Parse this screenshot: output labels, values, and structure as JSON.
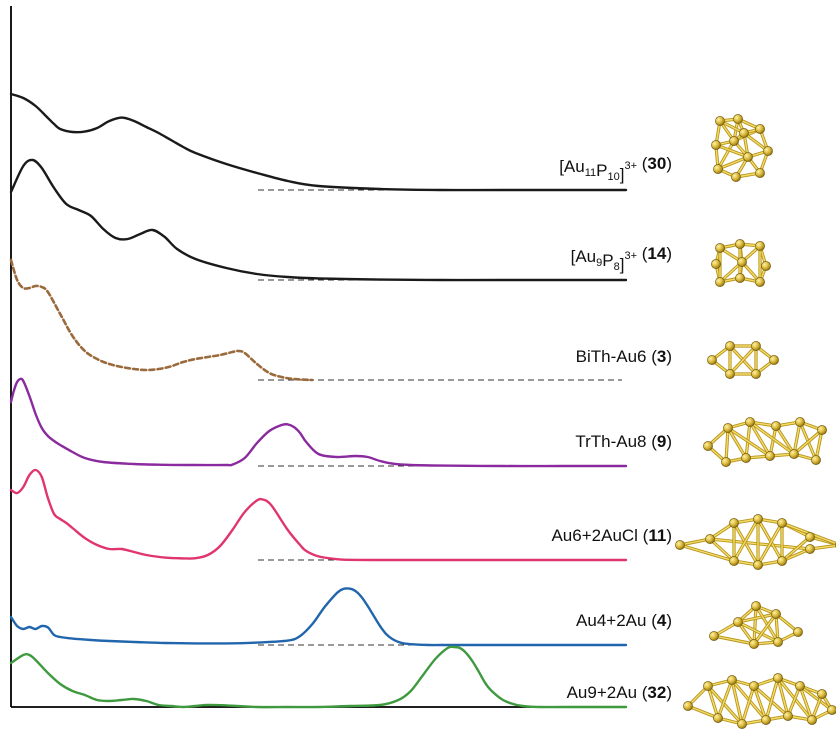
{
  "chart_data": {
    "type": "line",
    "title": "",
    "xlabel": "",
    "ylabel": "",
    "series": [
      {
        "name": "[Au11P10]3+ (30)",
        "label_parts": [
          {
            "t": "[Au",
            "s": "n"
          },
          {
            "t": "11",
            "s": "sub"
          },
          {
            "t": "P",
            "s": "n"
          },
          {
            "t": "10",
            "s": "sub"
          },
          {
            "t": "]",
            "s": "n"
          },
          {
            "t": "3+",
            "s": "sup"
          },
          {
            "t": " (",
            "s": "n"
          },
          {
            "t": "30",
            "s": "b"
          },
          {
            "t": ")",
            "s": "n"
          }
        ],
        "color": "#1a1a1a",
        "dashed": false,
        "x": [
          0,
          2,
          4,
          6,
          7,
          8,
          10,
          12,
          14,
          16,
          18,
          20,
          22,
          24,
          26,
          28,
          30,
          35,
          40,
          45,
          50,
          60,
          70,
          80,
          100
        ],
        "y": [
          4.8,
          4.6,
          4.2,
          3.6,
          3.3,
          3.05,
          2.9,
          2.92,
          3.1,
          3.45,
          3.62,
          3.45,
          3.15,
          2.85,
          2.5,
          2.15,
          1.85,
          1.3,
          0.85,
          0.45,
          0.2,
          0.05,
          0.0,
          0.0,
          0.0
        ]
      },
      {
        "name": "[Au9P8]3+ (14)",
        "label_parts": [
          {
            "t": "[Au",
            "s": "n"
          },
          {
            "t": "9",
            "s": "sub"
          },
          {
            "t": "P",
            "s": "n"
          },
          {
            "t": "8",
            "s": "sub"
          },
          {
            "t": "]",
            "s": "n"
          },
          {
            "t": "3+",
            "s": "sup"
          },
          {
            "t": " (",
            "s": "n"
          },
          {
            "t": "14",
            "s": "b"
          },
          {
            "t": ")",
            "s": "n"
          }
        ],
        "color": "#1a1a1a",
        "dashed": false,
        "x": [
          0,
          2,
          3.5,
          5,
          7,
          9,
          11,
          13,
          15,
          17,
          19,
          21,
          23,
          25,
          27,
          30,
          35,
          40,
          45,
          50,
          60,
          70,
          80,
          100
        ],
        "y": [
          4.4,
          5.7,
          6.0,
          5.6,
          4.6,
          3.8,
          3.5,
          3.2,
          2.55,
          2.1,
          2.05,
          2.3,
          2.5,
          2.15,
          1.55,
          1.05,
          0.6,
          0.3,
          0.15,
          0.08,
          0.02,
          0.0,
          0.0,
          0.0
        ]
      },
      {
        "name": "BiTh-Au6 (3)",
        "label_parts": [
          {
            "t": "BiTh-Au6 (",
            "s": "n"
          },
          {
            "t": "3",
            "s": "b"
          },
          {
            "t": ")",
            "s": "n"
          }
        ],
        "color": "#9b6a3c",
        "dashed": true,
        "x": [
          0,
          1,
          2,
          3,
          4,
          5,
          6,
          8,
          10,
          12,
          14,
          16,
          18,
          20,
          22,
          24,
          26,
          28,
          30,
          32,
          34,
          36,
          37,
          38,
          40,
          42,
          44,
          46,
          49
        ],
        "y": [
          6.0,
          5.0,
          4.6,
          4.6,
          4.7,
          4.65,
          4.4,
          3.3,
          2.2,
          1.45,
          1.05,
          0.8,
          0.65,
          0.55,
          0.5,
          0.55,
          0.68,
          0.9,
          1.05,
          1.15,
          1.25,
          1.4,
          1.45,
          1.35,
          0.8,
          0.35,
          0.15,
          0.05,
          0.0
        ]
      },
      {
        "name": "TrTh-Au8 (9)",
        "label_parts": [
          {
            "t": "TrTh-Au8 (",
            "s": "n"
          },
          {
            "t": "9",
            "s": "b"
          },
          {
            "t": ")",
            "s": "n"
          }
        ],
        "color": "#8a2a9e",
        "dashed": false,
        "x": [
          0,
          0.5,
          1,
          1.5,
          2,
          3,
          4,
          5,
          6,
          7,
          8,
          10,
          12,
          15,
          20,
          25,
          30,
          35,
          36,
          38,
          40,
          42,
          44,
          45,
          46,
          47,
          48,
          50,
          53,
          56,
          58,
          60,
          62,
          65,
          70,
          80,
          90,
          100
        ],
        "y": [
          3.2,
          3.8,
          4.2,
          4.35,
          4.25,
          3.5,
          2.6,
          1.9,
          1.5,
          1.25,
          1.05,
          0.7,
          0.4,
          0.2,
          0.1,
          0.06,
          0.05,
          0.05,
          0.07,
          0.4,
          1.15,
          1.75,
          2.05,
          2.08,
          1.95,
          1.65,
          1.2,
          0.6,
          0.45,
          0.5,
          0.45,
          0.25,
          0.12,
          0.05,
          0.02,
          0.0,
          0.0,
          0.0
        ]
      },
      {
        "name": "Au6+2AuCl (11)",
        "label_parts": [
          {
            "t": "Au6+2AuCl (",
            "s": "n"
          },
          {
            "t": "11",
            "s": "b"
          },
          {
            "t": ")",
            "s": "n"
          }
        ],
        "color": "#e0356e",
        "dashed": false,
        "x": [
          0,
          1,
          2,
          3,
          4,
          5,
          6,
          7,
          8,
          9,
          10,
          12,
          14,
          16,
          18,
          20,
          22,
          25,
          28,
          30,
          32,
          34,
          36,
          38,
          40,
          41,
          42,
          43,
          45,
          47,
          48,
          50,
          53,
          55,
          60,
          70,
          80,
          100
        ],
        "y": [
          3.5,
          3.35,
          3.65,
          4.25,
          4.5,
          4.15,
          3.1,
          2.3,
          2.05,
          1.85,
          1.6,
          1.1,
          0.75,
          0.55,
          0.55,
          0.4,
          0.25,
          0.12,
          0.08,
          0.09,
          0.25,
          0.7,
          1.5,
          2.4,
          2.98,
          3.02,
          2.85,
          2.45,
          1.5,
          0.75,
          0.45,
          0.18,
          0.04,
          0.01,
          0.0,
          0.0,
          0.0,
          0.0
        ]
      },
      {
        "name": "Au4+2Au (4)",
        "label_parts": [
          {
            "t": "Au4+2Au (",
            "s": "n"
          },
          {
            "t": "4",
            "s": "b"
          },
          {
            "t": ")",
            "s": "n"
          }
        ],
        "color": "#2166ac",
        "dashed": false,
        "x": [
          0,
          1,
          2,
          3,
          4,
          5,
          6,
          7,
          8,
          10,
          13,
          16,
          20,
          25,
          30,
          35,
          40,
          45,
          47,
          49,
          51,
          53,
          54,
          55,
          56,
          57,
          58,
          59,
          60,
          61,
          62,
          63,
          64,
          66,
          68,
          70,
          75,
          80,
          90,
          100
        ],
        "y": [
          1.4,
          0.95,
          0.8,
          0.9,
          0.8,
          0.95,
          0.88,
          0.5,
          0.4,
          0.32,
          0.25,
          0.2,
          0.15,
          0.1,
          0.08,
          0.08,
          0.12,
          0.22,
          0.45,
          1.05,
          1.9,
          2.6,
          2.8,
          2.82,
          2.7,
          2.4,
          1.95,
          1.45,
          0.95,
          0.55,
          0.3,
          0.15,
          0.07,
          0.02,
          0.0,
          0.0,
          0.0,
          0.0,
          0.0,
          0.0
        ]
      },
      {
        "name": "Au9+2Au (32)",
        "label_parts": [
          {
            "t": "Au9+2Au (",
            "s": "n"
          },
          {
            "t": "32",
            "s": "b"
          },
          {
            "t": ")",
            "s": "n"
          }
        ],
        "color": "#3f9a3f",
        "dashed": false,
        "x": [
          0,
          2,
          3,
          4,
          6,
          8,
          10,
          12,
          14,
          16,
          18,
          20,
          22,
          24,
          26,
          28,
          30,
          32,
          35,
          40,
          45,
          50,
          55,
          60,
          63,
          65,
          67,
          69,
          71,
          72,
          73,
          74,
          75,
          76,
          77,
          78,
          80,
          82,
          84,
          86,
          90,
          100
        ],
        "y": [
          2.2,
          2.6,
          2.6,
          2.35,
          1.7,
          1.15,
          0.8,
          0.6,
          0.35,
          0.3,
          0.35,
          0.4,
          0.3,
          0.1,
          0.05,
          0.0,
          0.05,
          0.1,
          0.08,
          0.0,
          0.0,
          0.0,
          0.05,
          0.1,
          0.35,
          0.8,
          1.6,
          2.4,
          2.95,
          3.0,
          2.95,
          2.7,
          2.3,
          1.8,
          1.25,
          0.85,
          0.35,
          0.12,
          0.03,
          0.0,
          0.0,
          0.0
        ]
      }
    ]
  }
}
